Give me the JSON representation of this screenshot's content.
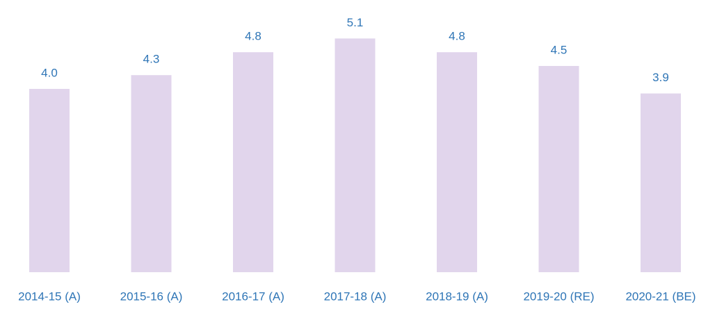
{
  "chart_data": {
    "type": "bar",
    "categories": [
      "2014-15 (A)",
      "2015-16 (A)",
      "2016-17 (A)",
      "2017-18 (A)",
      "2018-19 (A)",
      "2019-20 (RE)",
      "2020-21 (BE)"
    ],
    "values": [
      4.0,
      4.3,
      4.8,
      5.1,
      4.8,
      4.5,
      3.9
    ],
    "value_labels": [
      "4.0",
      "4.3",
      "4.8",
      "5.1",
      "4.8",
      "4.5",
      "3.9"
    ],
    "color": "#e1d5ec"
  }
}
